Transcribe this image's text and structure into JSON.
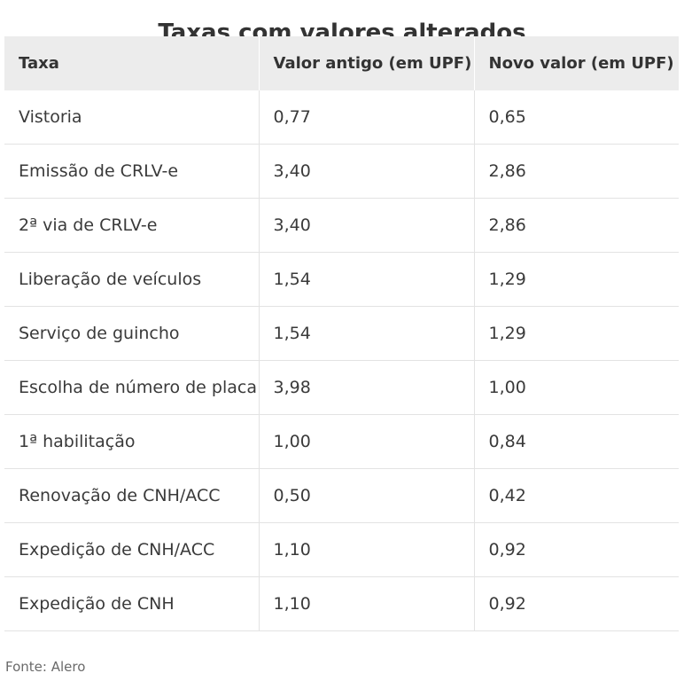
{
  "chart_data": {
    "type": "table",
    "title": "Taxas com valores alterados",
    "columns": [
      "Taxa",
      "Valor antigo (em UPF)",
      "Novo valor (em UPF)"
    ],
    "rows": [
      [
        "Vistoria",
        "0,77",
        "0,65"
      ],
      [
        "Emissão de CRLV-e",
        "3,40",
        "2,86"
      ],
      [
        "2ª via de CRLV-e",
        "3,40",
        "2,86"
      ],
      [
        "Liberação de veículos",
        "1,54",
        "1,29"
      ],
      [
        "Serviço de guincho",
        "1,54",
        "1,29"
      ],
      [
        "Escolha de número de placa",
        "3,98",
        "1,00"
      ],
      [
        "1ª habilitação",
        "1,00",
        "0,84"
      ],
      [
        "Renovação de CNH/ACC",
        "0,50",
        "0,42"
      ],
      [
        "Expedição de CNH/ACC",
        "1,10",
        "0,92"
      ],
      [
        "Expedição de CNH",
        "1,10",
        "0,92"
      ]
    ],
    "source": "Fonte: Alero"
  },
  "colors": {
    "header_background": "#ececec",
    "row_divider": "#e3e3e3",
    "text": "#333333",
    "source_text": "#6a6a6a"
  }
}
